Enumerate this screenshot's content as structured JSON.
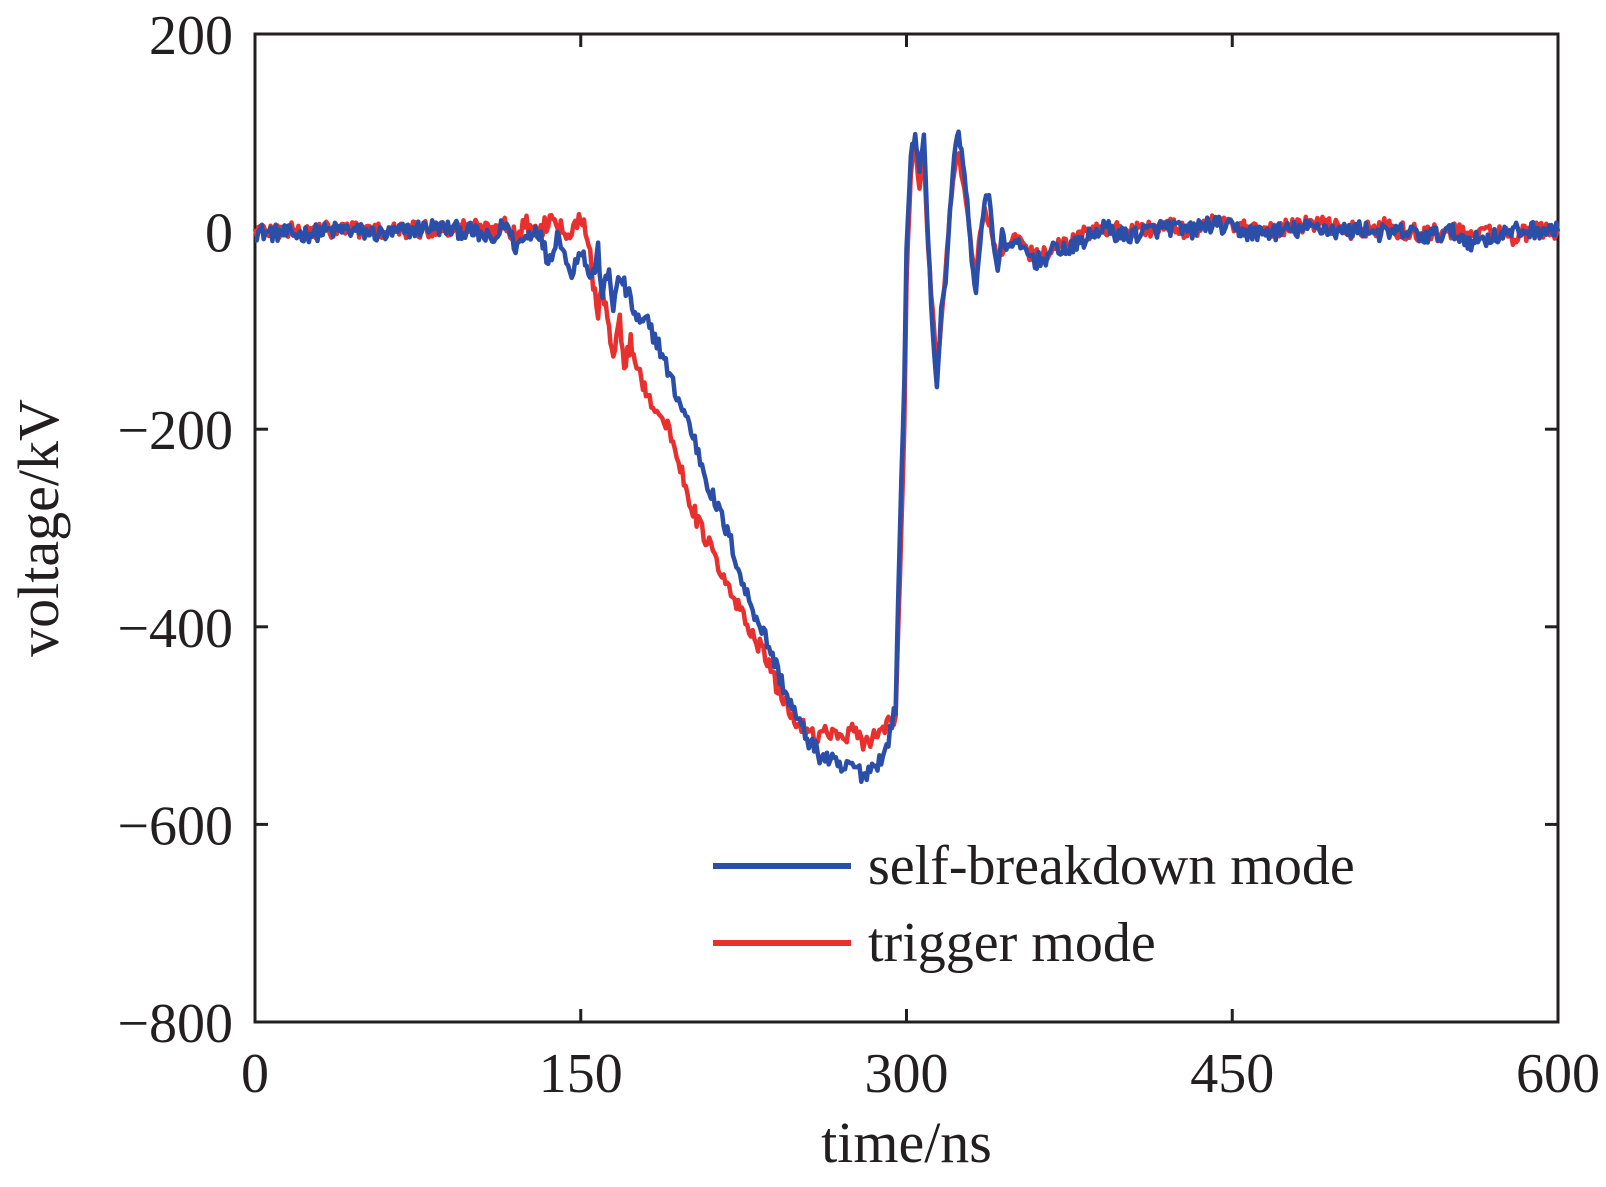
{
  "chart_data": {
    "type": "line",
    "title": "",
    "xlabel": "time/ns",
    "ylabel": "voltage/kV",
    "xlim": [
      0,
      600
    ],
    "ylim": [
      -800,
      200
    ],
    "xticks": [
      0,
      150,
      300,
      450,
      600
    ],
    "yticks": [
      200,
      0,
      -200,
      -400,
      -600,
      -800
    ],
    "xtick_labels": [
      "0",
      "150",
      "300",
      "450",
      "600"
    ],
    "ytick_labels": [
      "200",
      "0",
      "−200",
      "−400",
      "−600",
      "−800"
    ],
    "grid": false,
    "legend_position": "lower-right",
    "series": [
      {
        "name": "self-breakdown mode",
        "color": "#2b4fa8",
        "x": [
          0,
          20,
          40,
          60,
          80,
          100,
          110,
          115,
          120,
          130,
          135,
          140,
          145,
          150,
          152,
          155,
          158,
          160,
          163,
          165,
          168,
          170,
          173,
          175,
          178,
          180,
          185,
          190,
          195,
          200,
          205,
          210,
          215,
          220,
          225,
          230,
          235,
          240,
          245,
          250,
          255,
          260,
          265,
          270,
          275,
          280,
          285,
          290,
          295,
          297,
          299,
          300,
          302,
          304,
          306,
          308,
          310,
          312,
          314,
          316,
          318,
          320,
          322,
          324,
          326,
          328,
          330,
          332,
          334,
          336,
          338,
          340,
          342,
          344,
          346,
          348,
          350,
          355,
          360,
          365,
          370,
          375,
          380,
          385,
          390,
          400,
          410,
          420,
          430,
          440,
          450,
          460,
          470,
          480,
          490,
          500,
          510,
          520,
          530,
          540,
          550,
          560,
          570,
          580,
          590,
          600
        ],
        "y": [
          0,
          -3,
          2,
          -3,
          5,
          0,
          -10,
          10,
          -15,
          5,
          -30,
          0,
          -45,
          -15,
          -30,
          -50,
          -20,
          -65,
          -40,
          -75,
          -45,
          -55,
          -70,
          -85,
          -95,
          -90,
          -110,
          -140,
          -170,
          -195,
          -230,
          -265,
          -290,
          -320,
          -360,
          -385,
          -410,
          -440,
          -470,
          -495,
          -515,
          -530,
          -535,
          -545,
          -540,
          -550,
          -540,
          -530,
          -480,
          -300,
          -150,
          -20,
          80,
          95,
          60,
          100,
          -10,
          -100,
          -160,
          -80,
          -50,
          20,
          80,
          100,
          70,
          30,
          -30,
          -60,
          -10,
          30,
          40,
          -10,
          -40,
          0,
          -20,
          -10,
          -15,
          -20,
          -30,
          -25,
          -15,
          -20,
          -10,
          -5,
          5,
          -5,
          0,
          5,
          0,
          8,
          3,
          -2,
          0,
          2,
          5,
          0,
          3,
          -2,
          0,
          -5,
          0,
          -10,
          -5,
          0,
          2,
          0
        ]
      },
      {
        "name": "trigger mode",
        "color": "#e8312f",
        "x": [
          0,
          20,
          40,
          60,
          80,
          100,
          110,
          115,
          120,
          125,
          130,
          135,
          138,
          140,
          145,
          150,
          153,
          155,
          158,
          160,
          163,
          165,
          168,
          170,
          173,
          175,
          178,
          180,
          185,
          190,
          195,
          200,
          205,
          210,
          215,
          220,
          225,
          230,
          235,
          240,
          245,
          250,
          255,
          260,
          265,
          270,
          275,
          280,
          285,
          290,
          295,
          297,
          299,
          300,
          302,
          304,
          306,
          308,
          310,
          312,
          314,
          316,
          318,
          320,
          322,
          324,
          326,
          328,
          330,
          332,
          334,
          336,
          338,
          340,
          342,
          344,
          346,
          348,
          350,
          355,
          360,
          365,
          370,
          375,
          380,
          385,
          390,
          400,
          410,
          420,
          430,
          440,
          450,
          460,
          470,
          480,
          490,
          500,
          510,
          520,
          530,
          540,
          550,
          560,
          570,
          580,
          590,
          600
        ],
        "y": [
          2,
          0,
          3,
          0,
          2,
          5,
          0,
          10,
          -5,
          8,
          0,
          10,
          20,
          5,
          0,
          15,
          0,
          -40,
          -80,
          -60,
          -100,
          -120,
          -90,
          -140,
          -110,
          -130,
          -150,
          -160,
          -180,
          -200,
          -230,
          -270,
          -300,
          -320,
          -350,
          -370,
          -390,
          -410,
          -430,
          -460,
          -480,
          -500,
          -505,
          -510,
          -505,
          -515,
          -505,
          -520,
          -510,
          -500,
          -490,
          -350,
          -200,
          -50,
          60,
          90,
          40,
          80,
          -20,
          -80,
          -140,
          -90,
          -40,
          20,
          60,
          80,
          50,
          20,
          -20,
          -40,
          0,
          20,
          10,
          -10,
          -30,
          -20,
          -20,
          -10,
          -5,
          -20,
          -25,
          -20,
          -10,
          -15,
          -5,
          0,
          5,
          0,
          3,
          5,
          0,
          10,
          5,
          0,
          2,
          5,
          8,
          3,
          0,
          5,
          0,
          -2,
          0,
          -3,
          0,
          -5,
          0,
          2
        ]
      }
    ]
  },
  "legend": {
    "items": [
      {
        "label": "self-breakdown mode",
        "color": "#2b4fa8"
      },
      {
        "label": "trigger mode",
        "color": "#e8312f"
      }
    ]
  }
}
